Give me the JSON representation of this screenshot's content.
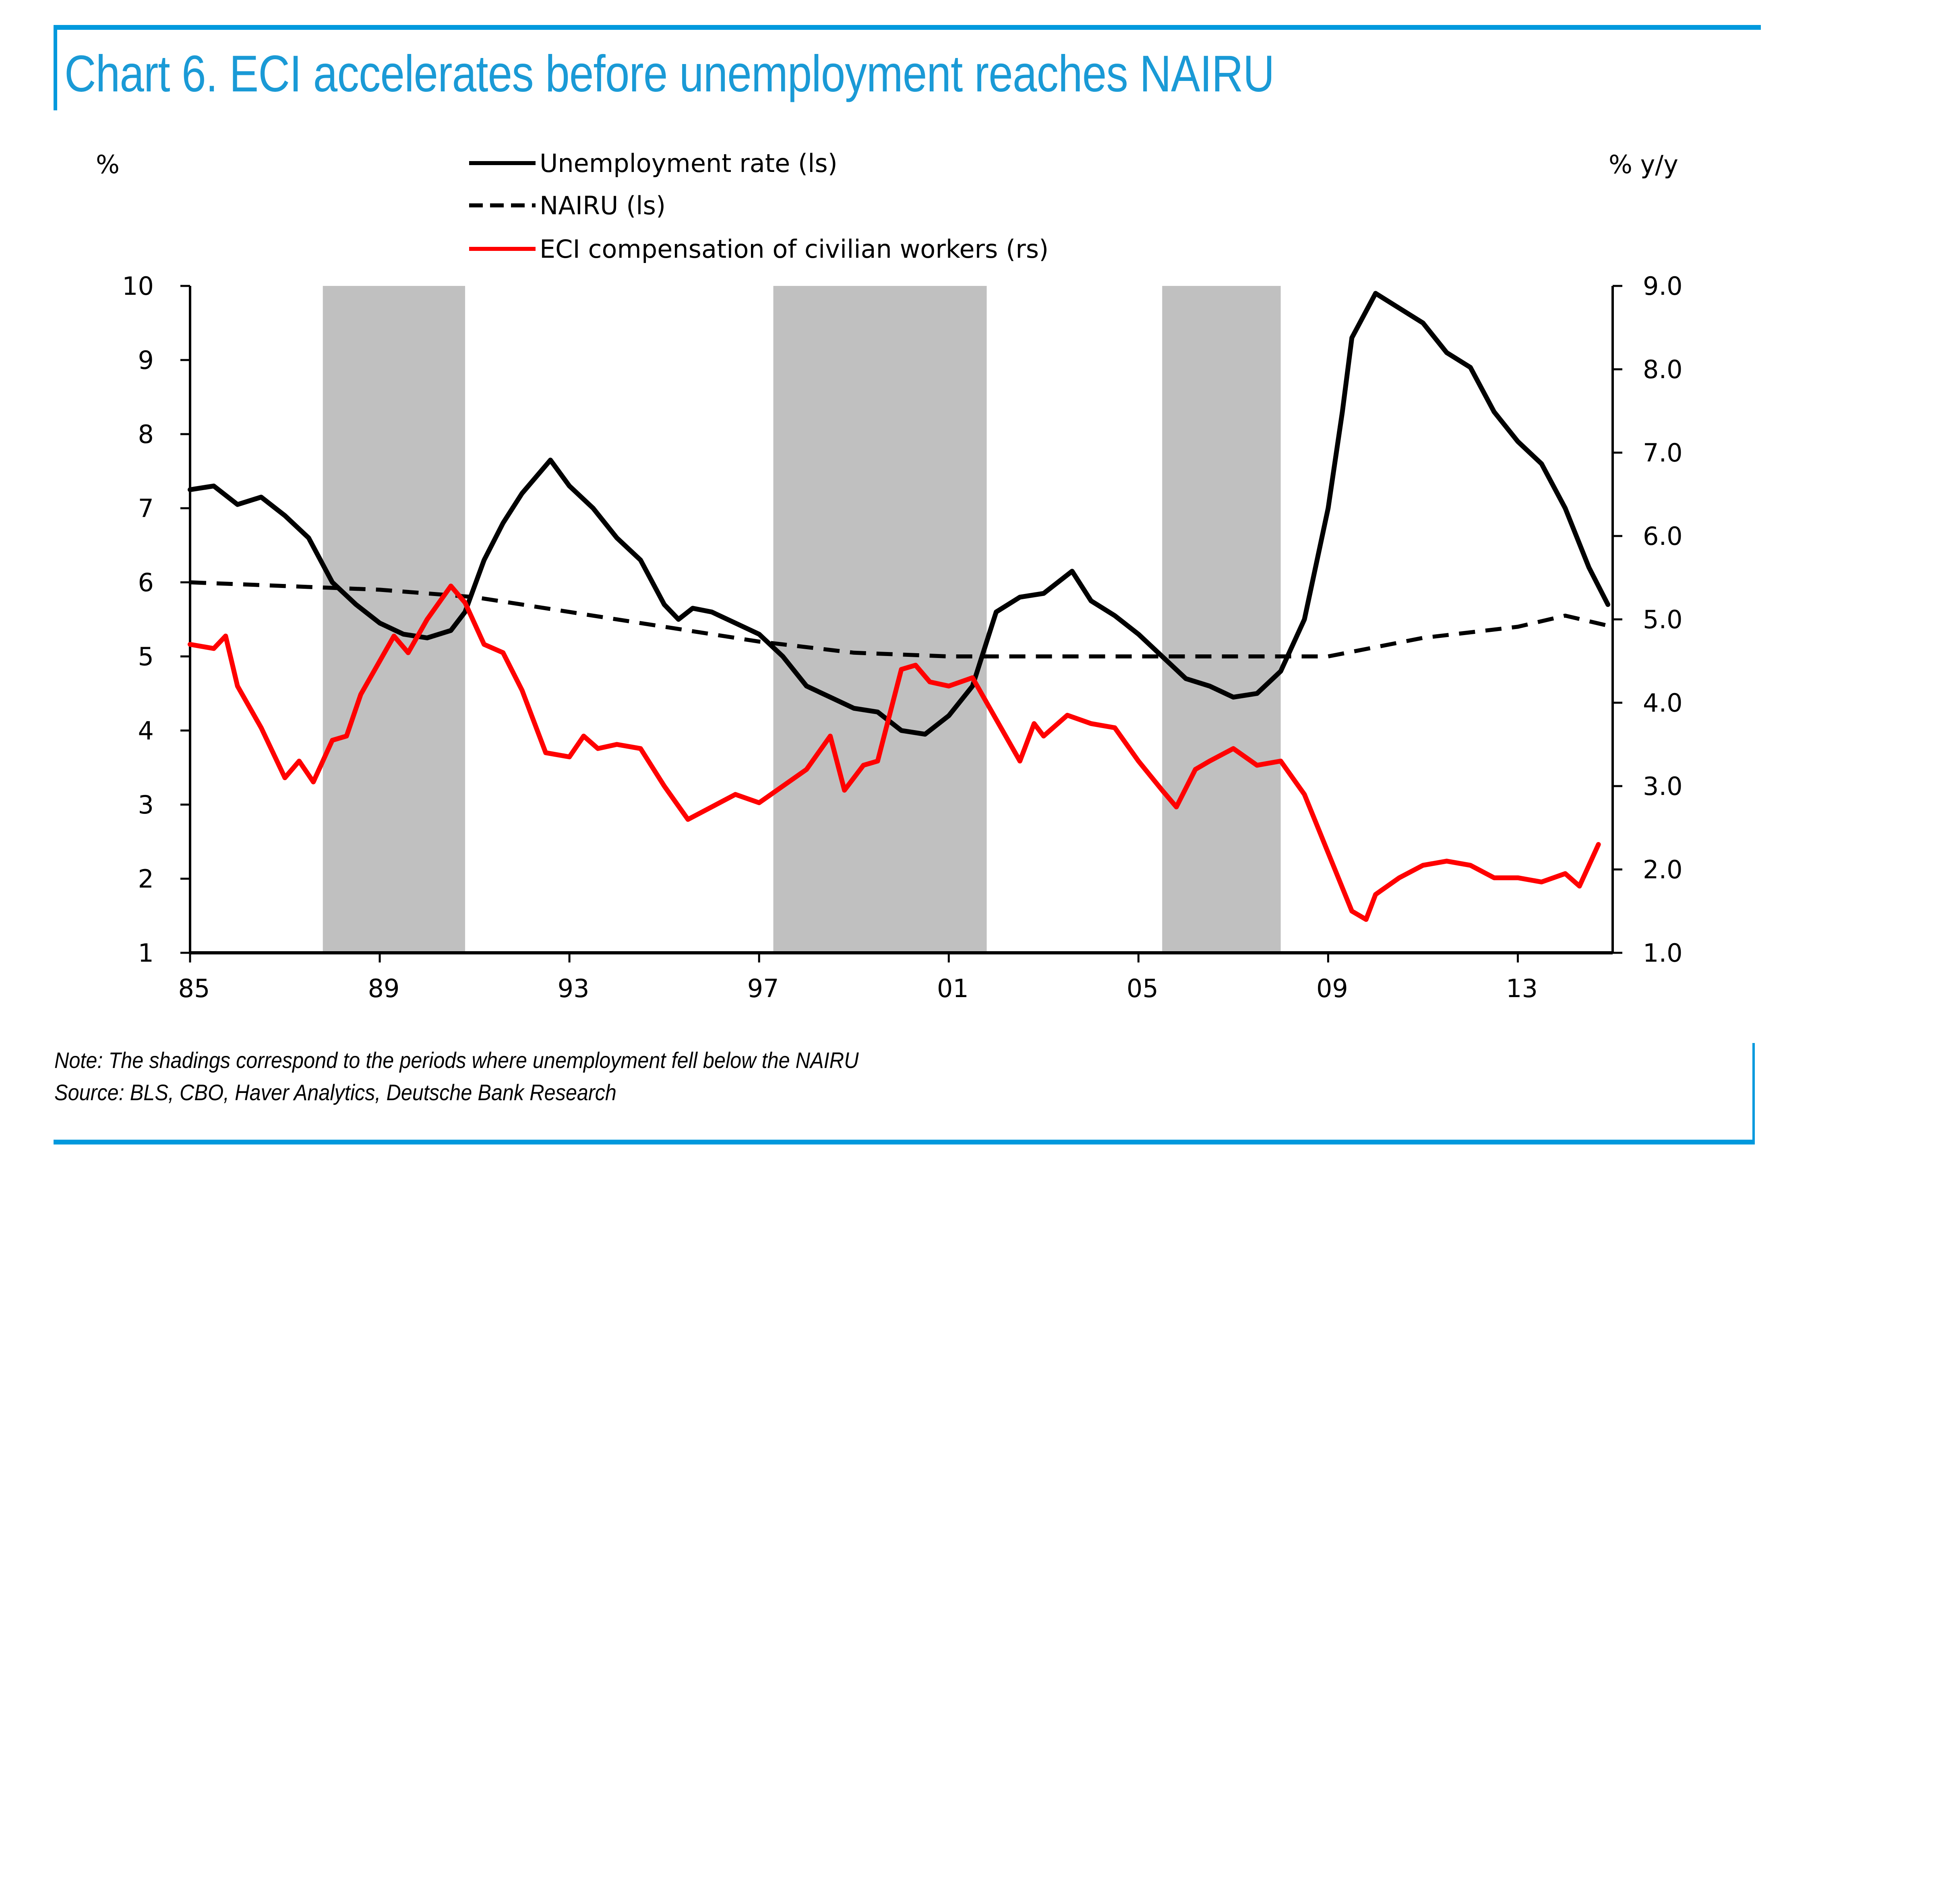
{
  "title": "Chart 6. ECI accelerates before unemployment reaches NAIRU",
  "note": "Note: The shadings correspond to  the periods where unemployment fell below the NAIRU",
  "source": "Source: BLS, CBO, Haver Analytics, Deutsche Bank Research",
  "colors": {
    "accent": "#0099dd",
    "unemployment": "#000000",
    "nairu": "#000000",
    "eci": "#ff0000",
    "shading": "#c0c0c0"
  },
  "chart_data": {
    "type": "line",
    "title": "Chart 6. ECI accelerates before unemployment reaches NAIRU",
    "ylabel_left": "%",
    "ylabel_right": "% y/y",
    "xlabel": "",
    "x_range": [
      1985,
      2015
    ],
    "x_ticks": [
      1985,
      1989,
      1993,
      1997,
      2001,
      2005,
      2009,
      2013
    ],
    "x_tick_labels": [
      "85",
      "89",
      "93",
      "97",
      "01",
      "05",
      "09",
      "13"
    ],
    "ylim_left": [
      1,
      10
    ],
    "y_ticks_left": [
      1,
      2,
      3,
      4,
      5,
      6,
      7,
      8,
      9,
      10
    ],
    "y_tick_labels_left": [
      "1",
      "2",
      "3",
      "4",
      "5",
      "6",
      "7",
      "8",
      "9",
      "10"
    ],
    "ylim_right": [
      1.0,
      9.0
    ],
    "y_ticks_right": [
      1,
      2,
      3,
      4,
      5,
      6,
      7,
      8,
      9
    ],
    "y_tick_labels_right": [
      "1.0",
      "2.0",
      "3.0",
      "4.0",
      "5.0",
      "6.0",
      "7.0",
      "8.0",
      "9.0"
    ],
    "grid": false,
    "legend_position": "top-center",
    "shaded_periods": [
      [
        1987.8,
        1990.8
      ],
      [
        1997.3,
        2001.8
      ],
      [
        2005.5,
        2008.0
      ]
    ],
    "series": [
      {
        "name": "Unemployment rate (ls)",
        "axis": "left",
        "style": "solid",
        "color": "#000000",
        "x": [
          1985.0,
          1985.5,
          1986.0,
          1986.5,
          1987.0,
          1987.5,
          1988.0,
          1988.5,
          1989.0,
          1989.5,
          1990.0,
          1990.5,
          1990.8,
          1991.2,
          1991.6,
          1992.0,
          1992.6,
          1993.0,
          1993.5,
          1994.0,
          1994.5,
          1995.0,
          1995.3,
          1995.6,
          1996.0,
          1996.5,
          1997.0,
          1997.5,
          1998.0,
          1998.5,
          1999.0,
          1999.5,
          2000.0,
          2000.5,
          2001.0,
          2001.5,
          2002.0,
          2002.5,
          2003.0,
          2003.6,
          2004.0,
          2004.5,
          2005.0,
          2005.5,
          2006.0,
          2006.5,
          2007.0,
          2007.5,
          2008.0,
          2008.5,
          2009.0,
          2009.3,
          2009.5,
          2010.0,
          2010.5,
          2011.0,
          2011.5,
          2012.0,
          2012.5,
          2013.0,
          2013.5,
          2014.0,
          2014.5,
          2014.9
        ],
        "values": [
          7.25,
          7.3,
          7.05,
          7.15,
          6.9,
          6.6,
          6.0,
          5.7,
          5.45,
          5.3,
          5.25,
          5.35,
          5.6,
          6.3,
          6.8,
          7.2,
          7.65,
          7.3,
          7.0,
          6.6,
          6.3,
          5.7,
          5.5,
          5.65,
          5.6,
          5.45,
          5.3,
          5.0,
          4.6,
          4.45,
          4.3,
          4.25,
          4.0,
          3.95,
          4.2,
          4.6,
          5.6,
          5.8,
          5.85,
          6.15,
          5.75,
          5.55,
          5.3,
          5.0,
          4.7,
          4.6,
          4.45,
          4.5,
          4.8,
          5.5,
          7.0,
          8.3,
          9.3,
          9.9,
          9.7,
          9.5,
          9.1,
          8.9,
          8.3,
          7.9,
          7.6,
          7.0,
          6.2,
          5.7
        ]
      },
      {
        "name": "NAIRU (ls)",
        "axis": "left",
        "style": "dashed",
        "color": "#000000",
        "x": [
          1985,
          1987,
          1989,
          1991,
          1993,
          1995,
          1997,
          1999,
          2001,
          2003,
          2005,
          2007,
          2009,
          2011,
          2013,
          2014,
          2015
        ],
        "values": [
          6.0,
          5.95,
          5.9,
          5.8,
          5.6,
          5.4,
          5.2,
          5.05,
          5.0,
          5.0,
          5.0,
          5.0,
          5.0,
          5.25,
          5.4,
          5.55,
          5.4
        ]
      },
      {
        "name": "ECI compensation of civilian workers (rs)",
        "axis": "right",
        "style": "solid",
        "color": "#ff0000",
        "x": [
          1985.0,
          1985.5,
          1985.75,
          1986.0,
          1986.5,
          1987.0,
          1987.3,
          1987.6,
          1988.0,
          1988.3,
          1988.6,
          1989.0,
          1989.3,
          1989.6,
          1990.0,
          1990.5,
          1990.8,
          1991.2,
          1991.6,
          1992.0,
          1992.5,
          1993.0,
          1993.3,
          1993.6,
          1994.0,
          1994.5,
          1995.0,
          1995.5,
          1996.0,
          1996.5,
          1997.0,
          1997.5,
          1998.0,
          1998.5,
          1998.8,
          1999.2,
          1999.5,
          2000.0,
          2000.3,
          2000.6,
          2001.0,
          2001.5,
          2002.0,
          2002.5,
          2002.8,
          2003.0,
          2003.5,
          2004.0,
          2004.5,
          2005.0,
          2005.5,
          2005.8,
          2006.2,
          2006.5,
          2007.0,
          2007.5,
          2008.0,
          2008.5,
          2009.0,
          2009.5,
          2009.8,
          2010.0,
          2010.5,
          2011.0,
          2011.5,
          2012.0,
          2012.5,
          2013.0,
          2013.5,
          2014.0,
          2014.3,
          2014.7
        ],
        "values": [
          4.7,
          4.65,
          4.8,
          4.2,
          3.7,
          3.1,
          3.3,
          3.05,
          3.55,
          3.6,
          4.1,
          4.5,
          4.8,
          4.6,
          5.0,
          5.4,
          5.2,
          4.7,
          4.6,
          4.15,
          3.4,
          3.35,
          3.6,
          3.45,
          3.5,
          3.45,
          3.0,
          2.6,
          2.75,
          2.9,
          2.8,
          3.0,
          3.2,
          3.6,
          2.95,
          3.25,
          3.3,
          4.4,
          4.45,
          4.25,
          4.2,
          4.3,
          3.8,
          3.3,
          3.75,
          3.6,
          3.85,
          3.75,
          3.7,
          3.3,
          2.95,
          2.75,
          3.2,
          3.3,
          3.45,
          3.25,
          3.3,
          2.9,
          2.2,
          1.5,
          1.4,
          1.7,
          1.9,
          2.05,
          2.1,
          2.05,
          1.9,
          1.9,
          1.85,
          1.95,
          1.8,
          2.3
        ]
      }
    ]
  }
}
